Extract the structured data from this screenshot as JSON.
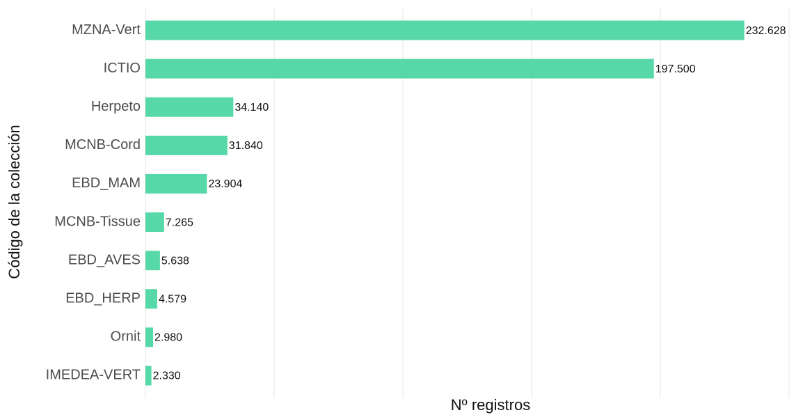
{
  "chart_data": {
    "type": "bar",
    "orientation": "horizontal",
    "xlabel": "Nº registros",
    "ylabel": "Código de la colección",
    "categories": [
      "MZNA-Vert",
      "ICTIO",
      "Herpeto",
      "MCNB-Cord",
      "EBD_MAM",
      "MCNB-Tissue",
      "EBD_AVES",
      "EBD_HERP",
      "Ornit",
      "IMEDEA-VERT"
    ],
    "values": [
      232628,
      197500,
      34140,
      31840,
      23904,
      7265,
      5638,
      4579,
      2980,
      2330
    ],
    "value_labels": [
      "232.628",
      "197.500",
      "34.140",
      "31.840",
      "23.904",
      "7.265",
      "5.638",
      "4.579",
      "2.980",
      "2.330"
    ],
    "color": "#57d8a9",
    "xlim": [
      0,
      250000
    ],
    "xticks": [
      0,
      50000,
      100000,
      150000,
      200000,
      250000
    ],
    "grid": true
  }
}
